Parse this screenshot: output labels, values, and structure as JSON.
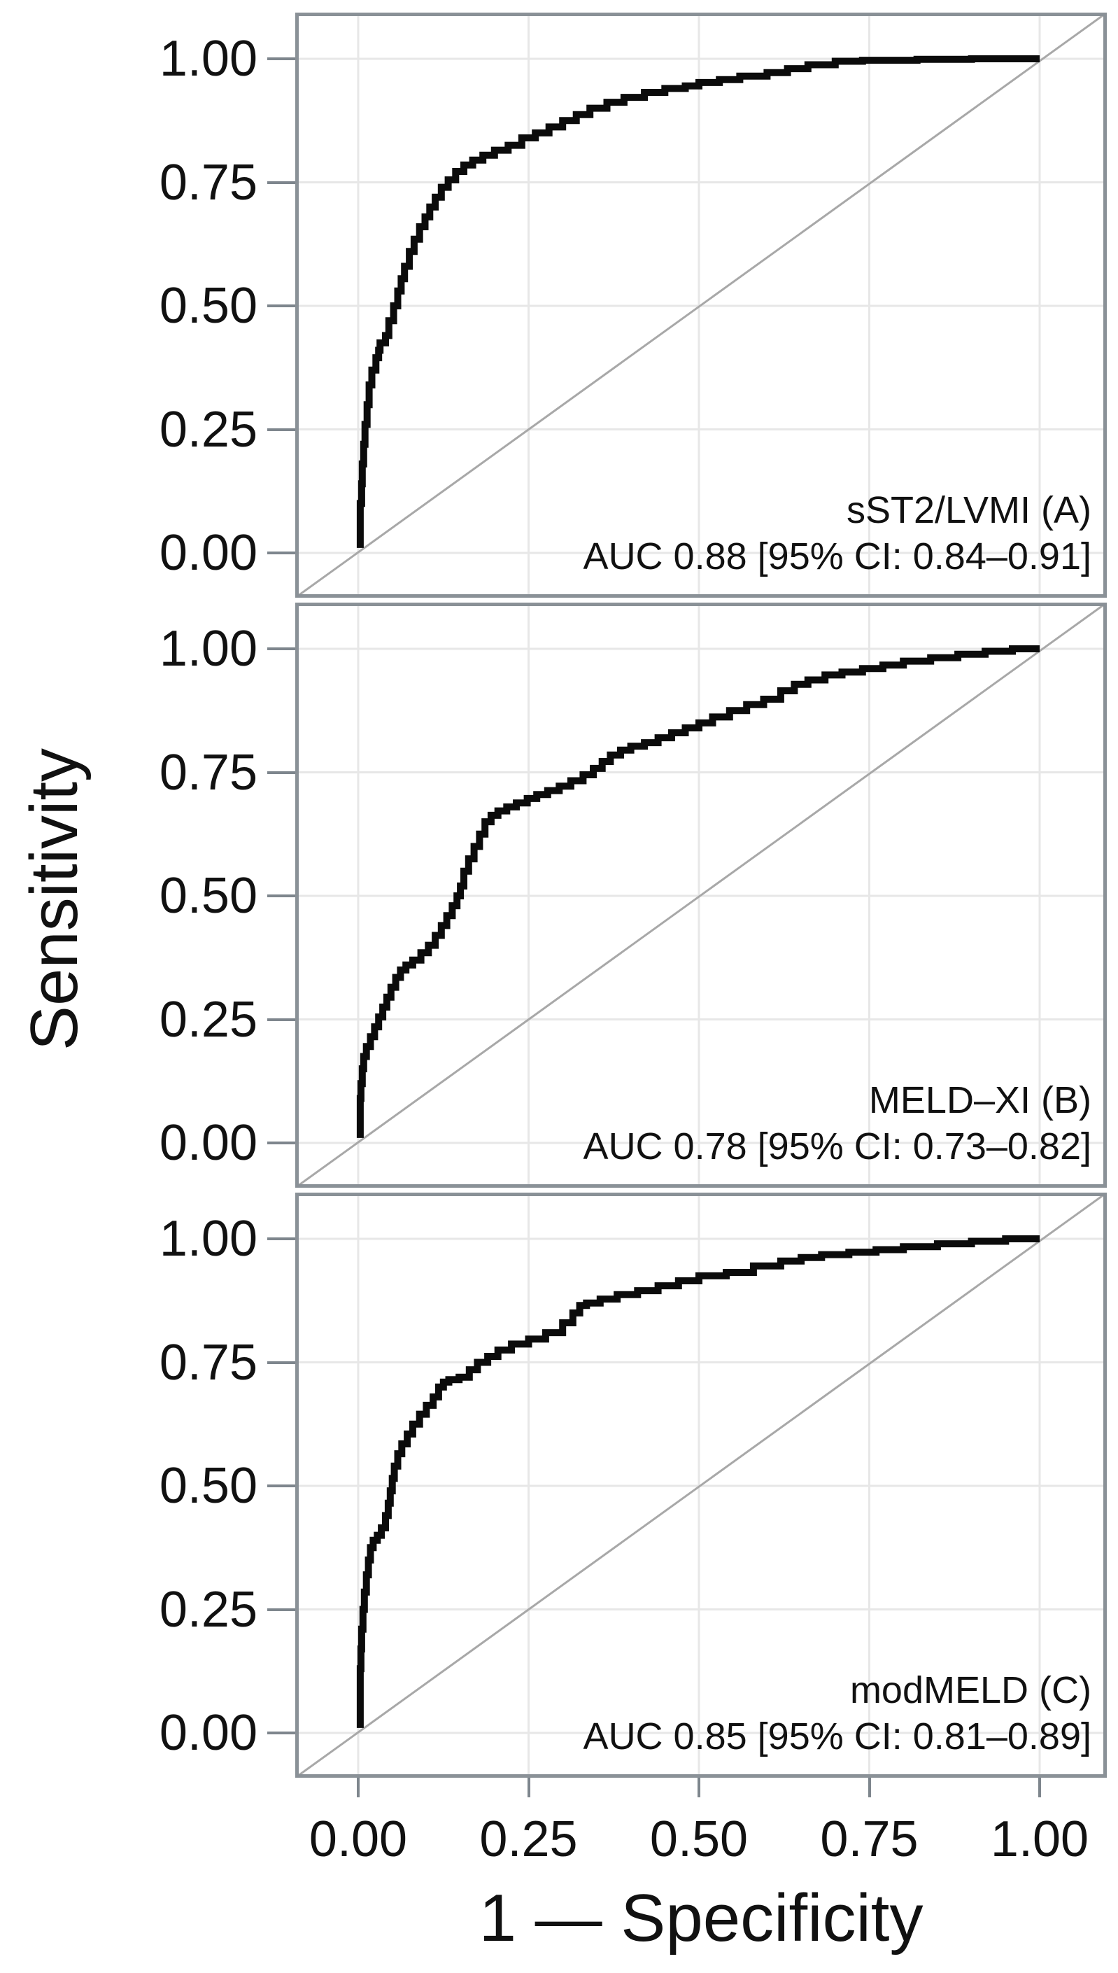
{
  "figure": {
    "y_axis_title": "Sensitivity",
    "x_axis_title": "1 — Specificity",
    "y_tick_labels": [
      "1.00",
      "0.75",
      "0.50",
      "0.25",
      "0.00"
    ],
    "x_tick_labels": [
      "0.00",
      "0.25",
      "0.50",
      "0.75",
      "1.00"
    ],
    "colors": {
      "curve": "#0b0b0b",
      "diagonal": "#a8a8a8",
      "grid": "#e7e7e7",
      "border": "#8a9197",
      "tick": "#7e868d",
      "text": "#111111",
      "background": "#ffffff"
    }
  },
  "chart_data": [
    {
      "type": "line",
      "subtype": "roc-step-curve",
      "title": "sST2/LVMI (A)",
      "auc_label": "AUC 0.88 [95% CI: 0.84–0.91]",
      "auc": 0.88,
      "ci_95": [
        0.84,
        0.91
      ],
      "xlabel": "1 — Specificity",
      "ylabel": "Sensitivity",
      "xlim": [
        0,
        1
      ],
      "ylim": [
        0,
        1
      ],
      "x_ticks": [
        0,
        0.25,
        0.5,
        0.75,
        1
      ],
      "y_ticks": [
        0,
        0.25,
        0.5,
        0.75,
        1
      ],
      "grid": true,
      "reference_line": "diagonal y = x",
      "legend_position": "none",
      "series": [
        {
          "name": "ROC sST2/LVMI",
          "points": [
            [
              0.003,
              0.01
            ],
            [
              0.003,
              0.06
            ],
            [
              0.005,
              0.1
            ],
            [
              0.006,
              0.14
            ],
            [
              0.008,
              0.18
            ],
            [
              0.01,
              0.22
            ],
            [
              0.013,
              0.26
            ],
            [
              0.016,
              0.3
            ],
            [
              0.02,
              0.34
            ],
            [
              0.026,
              0.37
            ],
            [
              0.03,
              0.395
            ],
            [
              0.032,
              0.41
            ],
            [
              0.04,
              0.425
            ],
            [
              0.045,
              0.44
            ],
            [
              0.052,
              0.47
            ],
            [
              0.058,
              0.5
            ],
            [
              0.063,
              0.53
            ],
            [
              0.068,
              0.555
            ],
            [
              0.075,
              0.58
            ],
            [
              0.082,
              0.61
            ],
            [
              0.09,
              0.635
            ],
            [
              0.098,
              0.66
            ],
            [
              0.105,
              0.68
            ],
            [
              0.113,
              0.7
            ],
            [
              0.122,
              0.72
            ],
            [
              0.132,
              0.74
            ],
            [
              0.143,
              0.755
            ],
            [
              0.155,
              0.772
            ],
            [
              0.168,
              0.785
            ],
            [
              0.183,
              0.795
            ],
            [
              0.2,
              0.805
            ],
            [
              0.22,
              0.815
            ],
            [
              0.24,
              0.825
            ],
            [
              0.26,
              0.84
            ],
            [
              0.28,
              0.85
            ],
            [
              0.3,
              0.862
            ],
            [
              0.32,
              0.875
            ],
            [
              0.34,
              0.887
            ],
            [
              0.365,
              0.9
            ],
            [
              0.39,
              0.912
            ],
            [
              0.42,
              0.922
            ],
            [
              0.45,
              0.932
            ],
            [
              0.48,
              0.94
            ],
            [
              0.5,
              0.945
            ],
            [
              0.53,
              0.952
            ],
            [
              0.56,
              0.958
            ],
            [
              0.6,
              0.965
            ],
            [
              0.63,
              0.972
            ],
            [
              0.66,
              0.98
            ],
            [
              0.7,
              0.988
            ],
            [
              0.74,
              0.995
            ],
            [
              0.82,
              0.997
            ],
            [
              0.9,
              0.999
            ],
            [
              0.97,
              1.0
            ],
            [
              1.0,
              1.0
            ]
          ]
        }
      ]
    },
    {
      "type": "line",
      "subtype": "roc-step-curve",
      "title": "MELD–XI (B)",
      "auc_label": "AUC 0.78 [95% CI: 0.73–0.82]",
      "auc": 0.78,
      "ci_95": [
        0.73,
        0.82
      ],
      "xlabel": "1 — Specificity",
      "ylabel": "Sensitivity",
      "xlim": [
        0,
        1
      ],
      "ylim": [
        0,
        1
      ],
      "x_ticks": [
        0,
        0.25,
        0.5,
        0.75,
        1
      ],
      "y_ticks": [
        0,
        0.25,
        0.5,
        0.75,
        1
      ],
      "grid": true,
      "reference_line": "diagonal y = x",
      "legend_position": "none",
      "series": [
        {
          "name": "ROC MELD-XI",
          "points": [
            [
              0.003,
              0.01
            ],
            [
              0.003,
              0.05
            ],
            [
              0.004,
              0.09
            ],
            [
              0.006,
              0.12
            ],
            [
              0.008,
              0.15
            ],
            [
              0.012,
              0.175
            ],
            [
              0.018,
              0.195
            ],
            [
              0.024,
              0.215
            ],
            [
              0.03,
              0.235
            ],
            [
              0.036,
              0.255
            ],
            [
              0.042,
              0.275
            ],
            [
              0.048,
              0.295
            ],
            [
              0.055,
              0.315
            ],
            [
              0.062,
              0.335
            ],
            [
              0.07,
              0.35
            ],
            [
              0.08,
              0.36
            ],
            [
              0.092,
              0.37
            ],
            [
              0.103,
              0.385
            ],
            [
              0.113,
              0.4
            ],
            [
              0.122,
              0.42
            ],
            [
              0.13,
              0.44
            ],
            [
              0.138,
              0.46
            ],
            [
              0.145,
              0.48
            ],
            [
              0.15,
              0.5
            ],
            [
              0.155,
              0.52
            ],
            [
              0.162,
              0.55
            ],
            [
              0.17,
              0.575
            ],
            [
              0.178,
              0.6
            ],
            [
              0.186,
              0.625
            ],
            [
              0.195,
              0.65
            ],
            [
              0.205,
              0.663
            ],
            [
              0.218,
              0.672
            ],
            [
              0.232,
              0.68
            ],
            [
              0.248,
              0.688
            ],
            [
              0.262,
              0.697
            ],
            [
              0.278,
              0.705
            ],
            [
              0.295,
              0.713
            ],
            [
              0.312,
              0.722
            ],
            [
              0.33,
              0.733
            ],
            [
              0.345,
              0.745
            ],
            [
              0.358,
              0.758
            ],
            [
              0.37,
              0.772
            ],
            [
              0.385,
              0.785
            ],
            [
              0.4,
              0.795
            ],
            [
              0.42,
              0.803
            ],
            [
              0.44,
              0.81
            ],
            [
              0.46,
              0.82
            ],
            [
              0.48,
              0.83
            ],
            [
              0.5,
              0.84
            ],
            [
              0.52,
              0.85
            ],
            [
              0.545,
              0.862
            ],
            [
              0.57,
              0.875
            ],
            [
              0.595,
              0.887
            ],
            [
              0.62,
              0.898
            ],
            [
              0.64,
              0.915
            ],
            [
              0.66,
              0.928
            ],
            [
              0.685,
              0.937
            ],
            [
              0.71,
              0.947
            ],
            [
              0.74,
              0.953
            ],
            [
              0.77,
              0.96
            ],
            [
              0.8,
              0.967
            ],
            [
              0.84,
              0.975
            ],
            [
              0.88,
              0.982
            ],
            [
              0.92,
              0.989
            ],
            [
              0.96,
              0.995
            ],
            [
              1.0,
              1.0
            ]
          ]
        }
      ]
    },
    {
      "type": "line",
      "subtype": "roc-step-curve",
      "title": "modMELD (C)",
      "auc_label": "AUC 0.85 [95% CI: 0.81–0.89]",
      "auc": 0.85,
      "ci_95": [
        0.81,
        0.89
      ],
      "xlabel": "1 — Specificity",
      "ylabel": "Sensitivity",
      "xlim": [
        0,
        1
      ],
      "ylim": [
        0,
        1
      ],
      "x_ticks": [
        0,
        0.25,
        0.5,
        0.75,
        1
      ],
      "y_ticks": [
        0,
        0.25,
        0.5,
        0.75,
        1
      ],
      "grid": true,
      "reference_line": "diagonal y = x",
      "legend_position": "none",
      "series": [
        {
          "name": "ROC modMELD",
          "points": [
            [
              0.003,
              0.01
            ],
            [
              0.003,
              0.08
            ],
            [
              0.004,
              0.13
            ],
            [
              0.005,
              0.17
            ],
            [
              0.007,
              0.21
            ],
            [
              0.009,
              0.25
            ],
            [
              0.012,
              0.285
            ],
            [
              0.015,
              0.32
            ],
            [
              0.018,
              0.35
            ],
            [
              0.022,
              0.375
            ],
            [
              0.028,
              0.39
            ],
            [
              0.034,
              0.4
            ],
            [
              0.04,
              0.415
            ],
            [
              0.044,
              0.44
            ],
            [
              0.047,
              0.465
            ],
            [
              0.05,
              0.49
            ],
            [
              0.053,
              0.515
            ],
            [
              0.058,
              0.54
            ],
            [
              0.064,
              0.565
            ],
            [
              0.072,
              0.585
            ],
            [
              0.08,
              0.605
            ],
            [
              0.09,
              0.625
            ],
            [
              0.1,
              0.645
            ],
            [
              0.11,
              0.663
            ],
            [
              0.118,
              0.68
            ],
            [
              0.125,
              0.7
            ],
            [
              0.133,
              0.71
            ],
            [
              0.148,
              0.715
            ],
            [
              0.163,
              0.72
            ],
            [
              0.175,
              0.735
            ],
            [
              0.19,
              0.75
            ],
            [
              0.205,
              0.762
            ],
            [
              0.225,
              0.775
            ],
            [
              0.25,
              0.787
            ],
            [
              0.275,
              0.797
            ],
            [
              0.3,
              0.81
            ],
            [
              0.315,
              0.83
            ],
            [
              0.325,
              0.85
            ],
            [
              0.335,
              0.865
            ],
            [
              0.355,
              0.87
            ],
            [
              0.38,
              0.878
            ],
            [
              0.41,
              0.887
            ],
            [
              0.44,
              0.895
            ],
            [
              0.47,
              0.905
            ],
            [
              0.5,
              0.915
            ],
            [
              0.54,
              0.925
            ],
            [
              0.58,
              0.932
            ],
            [
              0.62,
              0.945
            ],
            [
              0.65,
              0.955
            ],
            [
              0.68,
              0.962
            ],
            [
              0.72,
              0.968
            ],
            [
              0.76,
              0.973
            ],
            [
              0.8,
              0.978
            ],
            [
              0.85,
              0.984
            ],
            [
              0.9,
              0.99
            ],
            [
              0.95,
              0.995
            ],
            [
              1.0,
              1.0
            ]
          ]
        }
      ]
    }
  ]
}
